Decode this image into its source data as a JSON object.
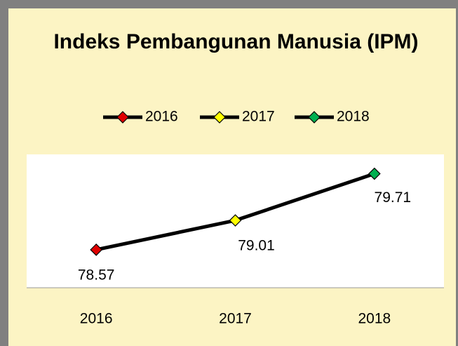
{
  "chart_data": {
    "type": "line",
    "title": "Indeks Pembangunan Manusia (IPM)",
    "categories": [
      "2016",
      "2017",
      "2018"
    ],
    "values": [
      78.57,
      79.01,
      79.71
    ],
    "color": "#000000",
    "point_colors": [
      "#e00000",
      "#ffff00",
      "#00b050"
    ],
    "ylim": [
      78,
      80
    ],
    "legend": "top",
    "data_labels": true
  }
}
